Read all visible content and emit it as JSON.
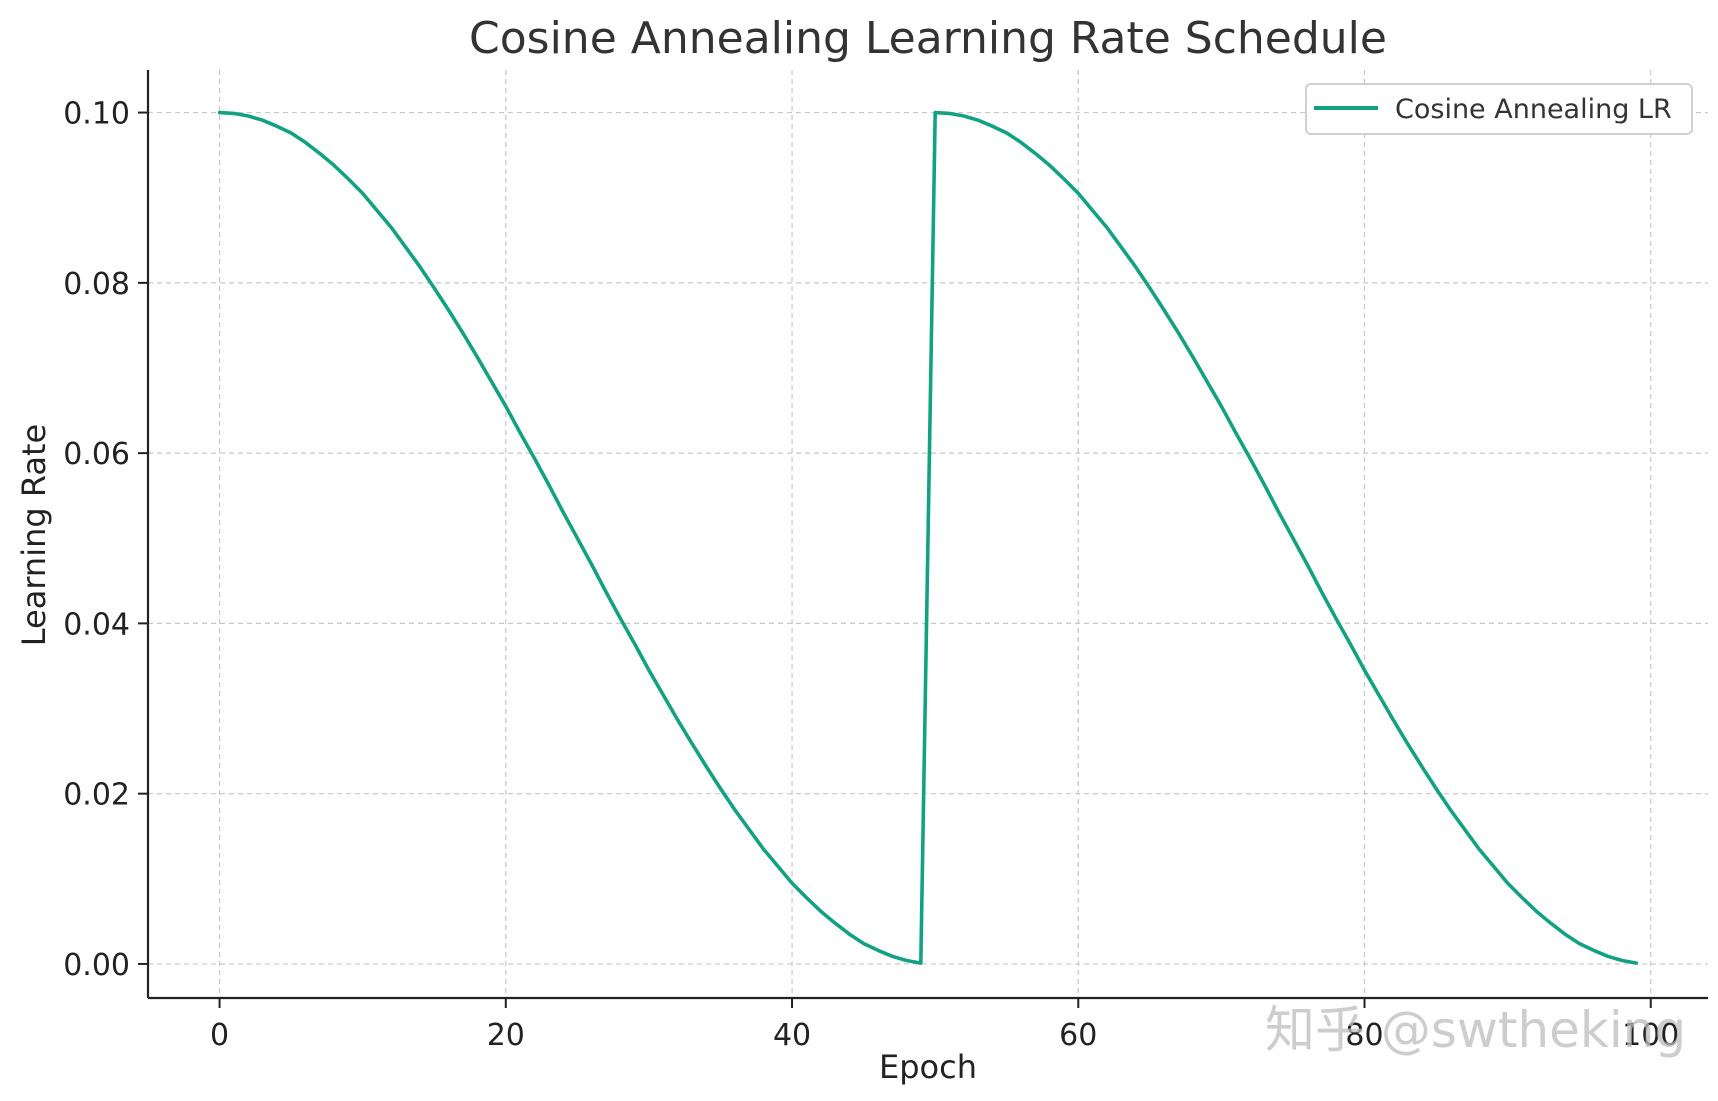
{
  "chart_data": {
    "type": "line",
    "title": "Cosine Annealing Learning Rate Schedule",
    "xlabel": "Epoch",
    "ylabel": "Learning Rate",
    "xlim": [
      -5,
      104
    ],
    "ylim": [
      -0.004,
      0.105
    ],
    "x_ticks": [
      0,
      20,
      40,
      60,
      80,
      100
    ],
    "x_tick_labels": [
      "0",
      "20",
      "40",
      "60",
      "80",
      "100"
    ],
    "y_ticks": [
      0.0,
      0.02,
      0.04,
      0.06,
      0.08,
      0.1
    ],
    "y_tick_labels": [
      "0.00",
      "0.02",
      "0.04",
      "0.06",
      "0.08",
      "0.10"
    ],
    "grid": true,
    "legend_position": "top-right",
    "series": [
      {
        "name": "Cosine Annealing LR",
        "color": "#12a283",
        "x": [
          0,
          1,
          2,
          3,
          4,
          5,
          6,
          7,
          8,
          9,
          10,
          11,
          12,
          13,
          14,
          15,
          16,
          17,
          18,
          19,
          20,
          21,
          22,
          23,
          24,
          25,
          26,
          27,
          28,
          29,
          30,
          31,
          32,
          33,
          34,
          35,
          36,
          37,
          38,
          39,
          40,
          41,
          42,
          43,
          44,
          45,
          46,
          47,
          48,
          49,
          50,
          51,
          52,
          53,
          54,
          55,
          56,
          57,
          58,
          59,
          60,
          61,
          62,
          63,
          64,
          65,
          66,
          67,
          68,
          69,
          70,
          71,
          72,
          73,
          74,
          75,
          76,
          77,
          78,
          79,
          80,
          81,
          82,
          83,
          84,
          85,
          86,
          87,
          88,
          89,
          90,
          91,
          92,
          93,
          94,
          95,
          96,
          97,
          98,
          99
        ],
        "y": [
          0.1,
          0.0999,
          0.0996,
          0.0991,
          0.0984,
          0.0976,
          0.0965,
          0.0952,
          0.0938,
          0.0922,
          0.0905,
          0.0885,
          0.0865,
          0.0842,
          0.0819,
          0.0794,
          0.0768,
          0.0741,
          0.0713,
          0.0684,
          0.0655,
          0.0624,
          0.0594,
          0.0563,
          0.0531,
          0.05,
          0.0469,
          0.0437,
          0.0406,
          0.0376,
          0.0345,
          0.0316,
          0.0287,
          0.0259,
          0.0232,
          0.0206,
          0.0181,
          0.0158,
          0.0135,
          0.0115,
          0.0095,
          0.0078,
          0.0062,
          0.0048,
          0.0035,
          0.0024,
          0.0016,
          0.0009,
          0.0004,
          0.0001,
          0.1,
          0.0999,
          0.0996,
          0.0991,
          0.0984,
          0.0976,
          0.0965,
          0.0952,
          0.0938,
          0.0922,
          0.0905,
          0.0885,
          0.0865,
          0.0842,
          0.0819,
          0.0794,
          0.0768,
          0.0741,
          0.0713,
          0.0684,
          0.0655,
          0.0624,
          0.0594,
          0.0563,
          0.0531,
          0.05,
          0.0469,
          0.0437,
          0.0406,
          0.0376,
          0.0345,
          0.0316,
          0.0287,
          0.0259,
          0.0232,
          0.0206,
          0.0181,
          0.0158,
          0.0135,
          0.0115,
          0.0095,
          0.0078,
          0.0062,
          0.0048,
          0.0035,
          0.0024,
          0.0016,
          0.0009,
          0.0004,
          0.0001
        ]
      }
    ]
  },
  "watermark": {
    "text": "知乎 @swtheking"
  },
  "colors": {
    "line": "#12a283",
    "grid": "#c8c8c8",
    "axis": "#222222",
    "legend_border": "#d0d0d0"
  }
}
